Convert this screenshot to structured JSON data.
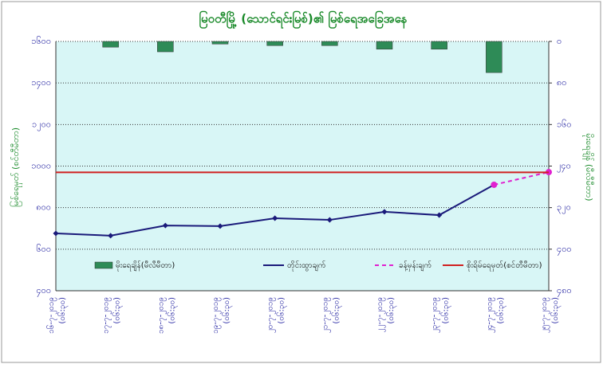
{
  "chart_data": {
    "type": "combo",
    "title": "မြဝတီမြို့ (သောင်ရင်းမြစ်)၏ မြစ်ရေအခြေအနေ",
    "ylabel": "မြစ်ရေမှတ် (စင်တီမီတာ)",
    "y2label": "မိုးရေချိန် (မီလီမီတာ)",
    "categories": [
      "၁၆-၇-၂၀၁၉",
      "၁၇-၇-၂၀၁၉",
      "၁၈-၇-၂၀၁၉",
      "၁၉-၇-၂၀၁၉",
      "၂၀-၇-၂၀၁၉",
      "၂၁-၇-၂၀၁၉",
      "၂၂-၇-၂၀၁၉",
      "၂၃-၇-၂၀၁၉",
      "၂၄-၇-၂၀၁၉",
      "၂၅-၇-၂၀၁၉"
    ],
    "category_times": [
      "(၀၆:၃၀)",
      "(၀၆:၃၀)",
      "(၀၆:၃၀)",
      "(၀၆:၃၀)",
      "(၀၆:၃၀)",
      "(၀၆:၃၀)",
      "(၀၆:၃၀)",
      "(၀၆:၃၀)",
      "(၀၆:၃၀)",
      "(၀၆:၃၀)"
    ],
    "series": [
      {
        "name": "မိုးရေချိန်(မီလီမီတာ)",
        "kind": "bar",
        "axis": "y2",
        "color": "#2e8b57",
        "values": [
          0,
          11,
          20,
          5,
          8,
          8,
          15,
          15,
          60,
          null
        ]
      },
      {
        "name": "တိုင်းထွာချက်",
        "kind": "line",
        "color": "#1a1a7a",
        "values": [
          676,
          665,
          714,
          711,
          749,
          741,
          780,
          764,
          910,
          null
        ]
      },
      {
        "name": "ခန့်မှန်းချက်",
        "kind": "dashed",
        "color": "#e020d0",
        "values": [
          null,
          null,
          null,
          null,
          null,
          null,
          null,
          null,
          910,
          971
        ]
      },
      {
        "name": "စိုးရိမ်ရေမှတ်(စင်တီမီတာ)",
        "kind": "hline",
        "color": "#d02020",
        "value": 970
      }
    ],
    "ylim": [
      400,
      1600
    ],
    "yticks": [
      {
        "value": 400,
        "label": "၄၀၀"
      },
      {
        "value": 600,
        "label": "၆၀၀"
      },
      {
        "value": 800,
        "label": "၈၀၀"
      },
      {
        "value": 1000,
        "label": "၁၀၀၀"
      },
      {
        "value": 1200,
        "label": "၁၂၀၀"
      },
      {
        "value": 1400,
        "label": "၁၄၀၀"
      },
      {
        "value": 1600,
        "label": "၁၆၀၀"
      }
    ],
    "y2lim": [
      480,
      0
    ],
    "y2ticks": [
      {
        "value": 0,
        "label": "၀"
      },
      {
        "value": 80,
        "label": "၈၀"
      },
      {
        "value": 160,
        "label": "၁၆၀"
      },
      {
        "value": 240,
        "label": "၂၄၀"
      },
      {
        "value": 320,
        "label": "၃၂၀"
      },
      {
        "value": 400,
        "label": "၄၀၀"
      },
      {
        "value": 480,
        "label": "၄၈၀"
      }
    ],
    "grid": true
  }
}
